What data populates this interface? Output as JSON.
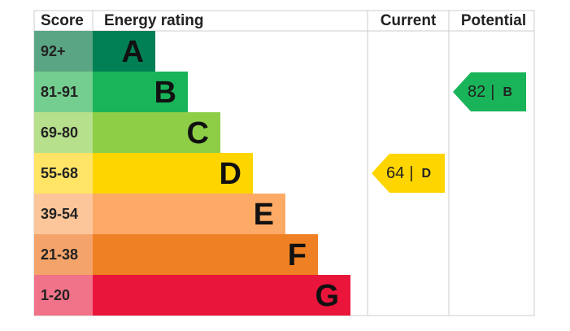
{
  "header": {
    "score": "Score",
    "rating": "Energy rating",
    "current": "Current",
    "potential": "Potential"
  },
  "bands": [
    {
      "score": "92+",
      "letter": "A",
      "color": "#008054",
      "score_color": "#5aa584"
    },
    {
      "score": "81-91",
      "letter": "B",
      "color": "#19b459",
      "score_color": "#73ce8f"
    },
    {
      "score": "69-80",
      "letter": "C",
      "color": "#8dce46",
      "score_color": "#b7e08d"
    },
    {
      "score": "55-68",
      "letter": "D",
      "color": "#ffd500",
      "score_color": "#ffe466"
    },
    {
      "score": "39-54",
      "letter": "E",
      "color": "#fcaa65",
      "score_color": "#fdc69a"
    },
    {
      "score": "21-38",
      "letter": "F",
      "color": "#ef8023",
      "score_color": "#f4a46a"
    },
    {
      "score": "1-20",
      "letter": "G",
      "color": "#e9153b",
      "score_color": "#f07389"
    }
  ],
  "separator": "|",
  "current": {
    "value": 64,
    "letter": "D"
  },
  "potential": {
    "value": 82,
    "letter": "B"
  }
}
